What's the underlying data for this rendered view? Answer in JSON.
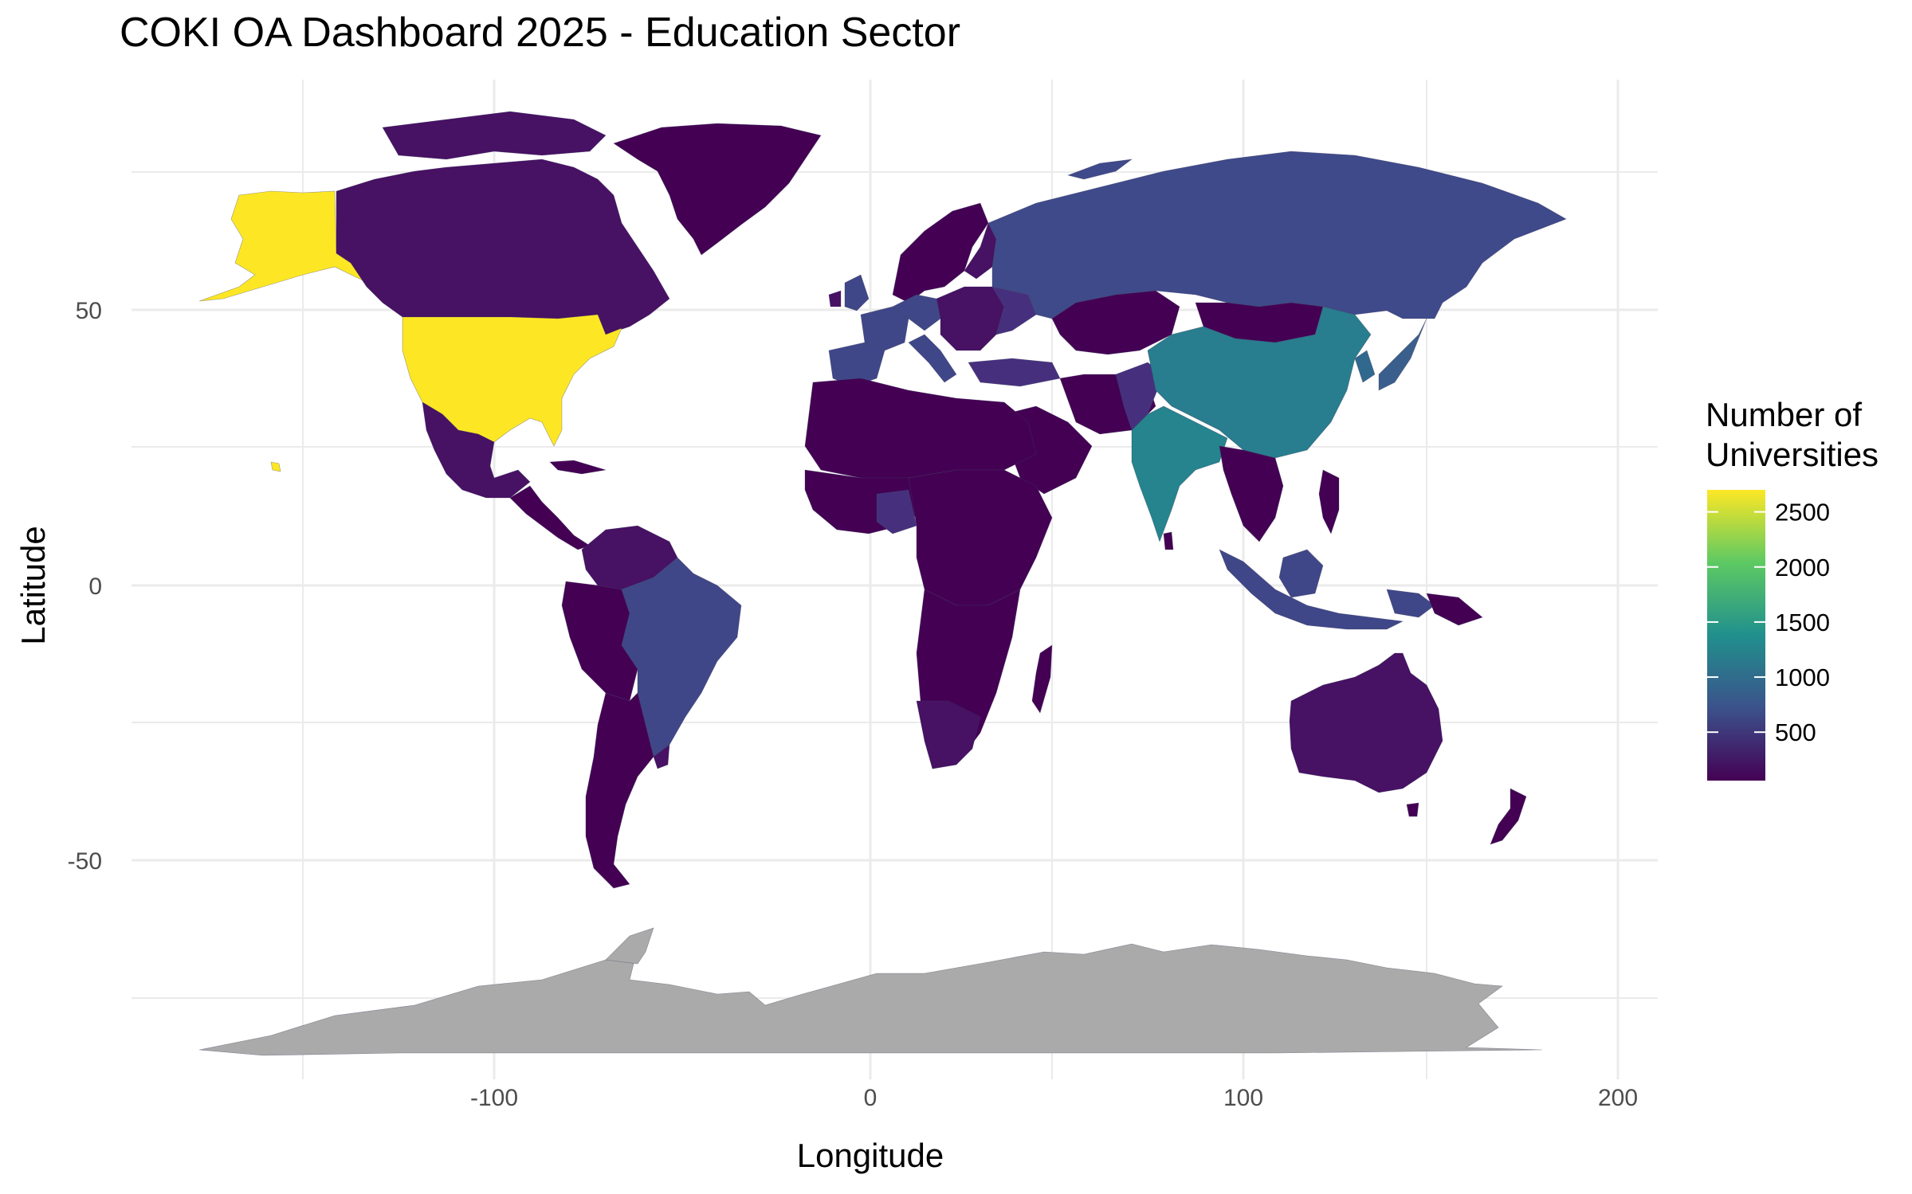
{
  "title": "COKI OA Dashboard 2025 - Education Sector",
  "xlabel": "Longitude",
  "ylabel": "Latitude",
  "legend": {
    "title_line1": "Number of",
    "title_line2": "Universities",
    "ticks": [
      {
        "value": 500,
        "label": "500"
      },
      {
        "value": 1000,
        "label": "1000"
      },
      {
        "value": 1500,
        "label": "1500"
      },
      {
        "value": 2000,
        "label": "2000"
      },
      {
        "value": 2500,
        "label": "2500"
      }
    ],
    "range": [
      60,
      2700
    ],
    "colormap": [
      "#440154",
      "#3b528b",
      "#21908d",
      "#5dc963",
      "#fde725"
    ]
  },
  "chart_data": {
    "type": "choropleth",
    "title": "COKI OA Dashboard 2025 - Education Sector",
    "xlabel": "Longitude",
    "ylabel": "Latitude",
    "xlim": [
      -190,
      210
    ],
    "ylim": [
      -93,
      85
    ],
    "x_ticks": [
      -100,
      0,
      100,
      200
    ],
    "y_ticks": [
      -50,
      0,
      50
    ],
    "grid": true,
    "legend_position": "right",
    "no_data_color": "#aaaaaa",
    "regions": [
      {
        "name": "United States",
        "value": 2650
      },
      {
        "name": "China",
        "value": 1150
      },
      {
        "name": "India",
        "value": 1050
      },
      {
        "name": "Japan",
        "value": 780
      },
      {
        "name": "Russia",
        "value": 560
      },
      {
        "name": "Brazil",
        "value": 500
      },
      {
        "name": "Indonesia",
        "value": 500
      },
      {
        "name": "Canada",
        "value": 250
      },
      {
        "name": "Mexico",
        "value": 250
      },
      {
        "name": "Australia",
        "value": 130
      },
      {
        "name": "Greenland",
        "value": 0
      },
      {
        "name": "Antarctica",
        "value": null
      }
    ]
  }
}
